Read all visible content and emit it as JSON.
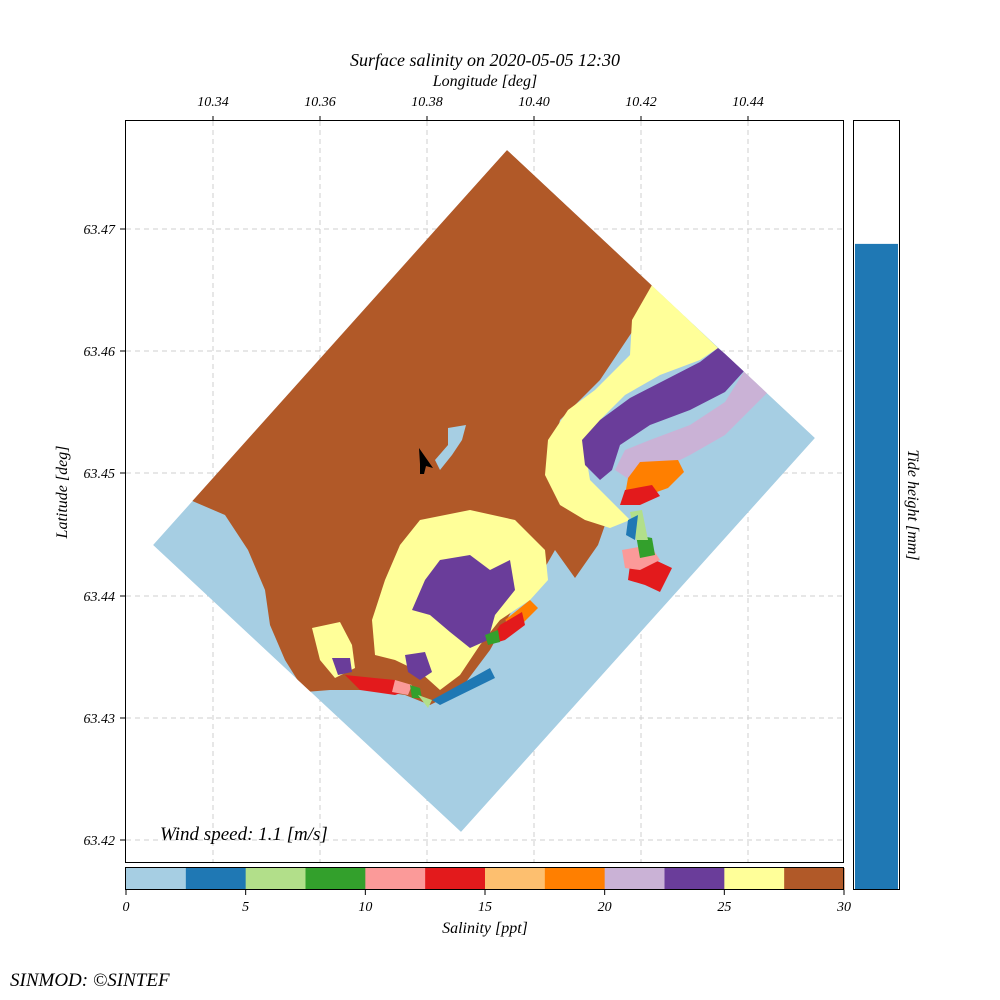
{
  "title": "Surface salinity on 2020-05-05 12:30",
  "map": {
    "x_axis_label": "Longitude [deg]",
    "y_axis_label": "Latitude [deg]",
    "x_ticks": [
      "10.34",
      "10.36",
      "10.38",
      "10.40",
      "10.42",
      "10.44"
    ],
    "y_ticks": [
      "63.47",
      "63.46",
      "63.45",
      "63.44",
      "63.43",
      "63.42"
    ],
    "grid": true,
    "wind_text": "Wind speed: 1.1 [m/s]",
    "wind_arrow_icon": "wind-arrow-icon"
  },
  "colorbar": {
    "label": "Salinity [ppt]",
    "ticks": [
      "0",
      "5",
      "10",
      "15",
      "20",
      "25",
      "30"
    ],
    "colors": [
      "#a6cee3",
      "#1f78b4",
      "#b2df8a",
      "#33a02c",
      "#fb9a99",
      "#e31a1c",
      "#fdbf6f",
      "#ff7f00",
      "#cab2d6",
      "#6a3d9a",
      "#ffff99",
      "#b15928"
    ]
  },
  "tide": {
    "label": "Tide height [mm]",
    "fill_fraction": 0.84,
    "color": "#1f78b4"
  },
  "credit": "SINMOD: ©SINTEF"
}
